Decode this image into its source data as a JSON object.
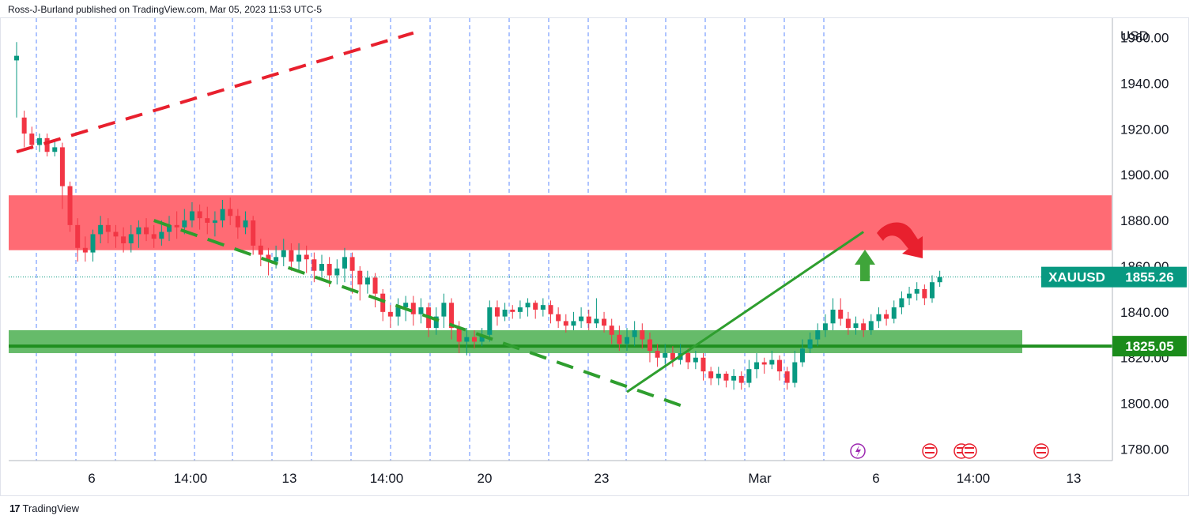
{
  "header": {
    "published": "Ross-J-Burland published on TradingView.com, Mar 05, 2023 11:53 UTC-5"
  },
  "footer": {
    "brand": "TradingView",
    "logo_glyph": "17"
  },
  "colors": {
    "up": "#089981",
    "down": "#f23645",
    "resistance_zone": "#ff6b74",
    "support_zone": "#66bb6a",
    "trend_green": "#2e9e2e",
    "trend_red": "#e8202e",
    "price_label": "#089981",
    "support_label": "#1b8c1b",
    "grid": "#2962ff"
  },
  "chart_data": {
    "type": "candlestick",
    "symbol": "XAUUSD",
    "currency": "USD",
    "last_price": "1855.26",
    "support_level_label": "1825.05",
    "ylim": [
      1775,
      1965
    ],
    "y_ticks": [
      "1960.00",
      "1940.00",
      "1920.00",
      "1900.00",
      "1880.00",
      "1860.00",
      "1840.00",
      "1820.00",
      "1800.00",
      "1780.00"
    ],
    "x_ticks": [
      "6",
      "14:00",
      "13",
      "14:00",
      "20",
      "23",
      "Mar",
      "6",
      "14:00",
      "13"
    ],
    "resistance_zone": [
      1867,
      1891
    ],
    "support_zone": [
      1822,
      1832
    ],
    "support_line": 1825.05,
    "candles": [
      [
        1950,
        1952,
        1958,
        1925
      ],
      [
        1925,
        1918,
        1928,
        1912
      ],
      [
        1918,
        1913,
        1921,
        1911
      ],
      [
        1913,
        1916,
        1918,
        1910
      ],
      [
        1916,
        1910,
        1918,
        1908
      ],
      [
        1910,
        1912,
        1915,
        1908
      ],
      [
        1912,
        1895,
        1914,
        1885
      ],
      [
        1895,
        1878,
        1897,
        1875
      ],
      [
        1878,
        1868,
        1881,
        1862
      ],
      [
        1868,
        1866,
        1873,
        1862
      ],
      [
        1866,
        1874,
        1876,
        1862
      ],
      [
        1874,
        1878,
        1882,
        1870
      ],
      [
        1878,
        1875,
        1881,
        1870
      ],
      [
        1875,
        1873,
        1878,
        1868
      ],
      [
        1873,
        1870,
        1877,
        1866
      ],
      [
        1870,
        1874,
        1878,
        1866
      ],
      [
        1874,
        1877,
        1880,
        1868
      ],
      [
        1877,
        1874,
        1881,
        1871
      ],
      [
        1874,
        1872,
        1878,
        1868
      ],
      [
        1872,
        1875,
        1880,
        1869
      ],
      [
        1875,
        1878,
        1882,
        1871
      ],
      [
        1878,
        1877,
        1884,
        1872
      ],
      [
        1877,
        1880,
        1885,
        1874
      ],
      [
        1880,
        1884,
        1888,
        1877
      ],
      [
        1884,
        1881,
        1887,
        1876
      ],
      [
        1881,
        1879,
        1886,
        1874
      ],
      [
        1879,
        1880,
        1884,
        1873
      ],
      [
        1880,
        1885,
        1889,
        1877
      ],
      [
        1885,
        1882,
        1890,
        1878
      ],
      [
        1882,
        1877,
        1885,
        1872
      ],
      [
        1877,
        1880,
        1884,
        1874
      ],
      [
        1880,
        1869,
        1882,
        1865
      ],
      [
        1869,
        1865,
        1872,
        1860
      ],
      [
        1865,
        1862,
        1868,
        1856
      ],
      [
        1862,
        1864,
        1869,
        1859
      ],
      [
        1864,
        1867,
        1872,
        1860
      ],
      [
        1867,
        1862,
        1870,
        1858
      ],
      [
        1862,
        1865,
        1870,
        1858
      ],
      [
        1865,
        1863,
        1869,
        1857
      ],
      [
        1863,
        1858,
        1866,
        1853
      ],
      [
        1858,
        1861,
        1865,
        1855
      ],
      [
        1861,
        1856,
        1864,
        1851
      ],
      [
        1856,
        1859,
        1863,
        1852
      ],
      [
        1859,
        1864,
        1868,
        1853
      ],
      [
        1864,
        1858,
        1866,
        1848
      ],
      [
        1858,
        1852,
        1860,
        1845
      ],
      [
        1852,
        1855,
        1858,
        1848
      ],
      [
        1855,
        1848,
        1857,
        1842
      ],
      [
        1848,
        1840,
        1850,
        1836
      ],
      [
        1840,
        1838,
        1843,
        1833
      ],
      [
        1838,
        1842,
        1846,
        1834
      ],
      [
        1842,
        1844,
        1847,
        1836
      ],
      [
        1844,
        1839,
        1847,
        1834
      ],
      [
        1839,
        1842,
        1846,
        1835
      ],
      [
        1842,
        1833,
        1844,
        1829
      ],
      [
        1833,
        1838,
        1842,
        1830
      ],
      [
        1838,
        1844,
        1848,
        1833
      ],
      [
        1844,
        1833,
        1846,
        1828
      ],
      [
        1833,
        1827,
        1836,
        1822
      ],
      [
        1827,
        1829,
        1833,
        1821
      ],
      [
        1829,
        1827,
        1832,
        1824
      ],
      [
        1827,
        1830,
        1833,
        1825
      ],
      [
        1830,
        1842,
        1845,
        1827
      ],
      [
        1842,
        1838,
        1845,
        1834
      ],
      [
        1838,
        1841,
        1844,
        1836
      ],
      [
        1841,
        1840,
        1843,
        1837
      ],
      [
        1840,
        1842,
        1845,
        1837
      ],
      [
        1842,
        1844,
        1846,
        1838
      ],
      [
        1844,
        1841,
        1845,
        1837
      ],
      [
        1841,
        1843,
        1846,
        1838
      ],
      [
        1843,
        1839,
        1845,
        1835
      ],
      [
        1839,
        1836,
        1842,
        1833
      ],
      [
        1836,
        1834,
        1839,
        1831
      ],
      [
        1834,
        1836,
        1840,
        1832
      ],
      [
        1836,
        1838,
        1842,
        1833
      ],
      [
        1838,
        1835,
        1841,
        1832
      ],
      [
        1835,
        1837,
        1846,
        1833
      ],
      [
        1837,
        1834,
        1840,
        1831
      ],
      [
        1834,
        1830,
        1837,
        1826
      ],
      [
        1830,
        1826,
        1834,
        1823
      ],
      [
        1826,
        1829,
        1833,
        1823
      ],
      [
        1829,
        1832,
        1836,
        1825
      ],
      [
        1832,
        1828,
        1835,
        1824
      ],
      [
        1828,
        1823,
        1831,
        1818
      ],
      [
        1823,
        1820,
        1826,
        1816
      ],
      [
        1820,
        1822,
        1826,
        1817
      ],
      [
        1822,
        1819,
        1825,
        1816
      ],
      [
        1819,
        1822,
        1826,
        1817
      ],
      [
        1822,
        1818,
        1824,
        1815
      ],
      [
        1818,
        1820,
        1823,
        1815
      ],
      [
        1820,
        1814,
        1822,
        1810
      ],
      [
        1814,
        1811,
        1816,
        1808
      ],
      [
        1811,
        1813,
        1816,
        1808
      ],
      [
        1813,
        1810,
        1814,
        1807
      ],
      [
        1810,
        1812,
        1815,
        1806
      ],
      [
        1812,
        1809,
        1814,
        1806
      ],
      [
        1809,
        1815,
        1819,
        1807
      ],
      [
        1815,
        1818,
        1822,
        1811
      ],
      [
        1818,
        1817,
        1820,
        1813
      ],
      [
        1817,
        1819,
        1823,
        1815
      ],
      [
        1819,
        1814,
        1821,
        1810
      ],
      [
        1814,
        1809,
        1816,
        1806
      ],
      [
        1809,
        1818,
        1823,
        1807
      ],
      [
        1818,
        1824,
        1828,
        1816
      ],
      [
        1824,
        1828,
        1831,
        1822
      ],
      [
        1828,
        1832,
        1835,
        1825
      ],
      [
        1832,
        1835,
        1839,
        1829
      ],
      [
        1835,
        1841,
        1846,
        1832
      ],
      [
        1841,
        1837,
        1846,
        1834
      ],
      [
        1837,
        1833,
        1840,
        1830
      ],
      [
        1833,
        1835,
        1838,
        1830
      ],
      [
        1835,
        1832,
        1837,
        1829
      ],
      [
        1832,
        1836,
        1839,
        1830
      ],
      [
        1836,
        1839,
        1842,
        1833
      ],
      [
        1839,
        1837,
        1841,
        1834
      ],
      [
        1837,
        1842,
        1845,
        1835
      ],
      [
        1842,
        1846,
        1849,
        1839
      ],
      [
        1846,
        1848,
        1851,
        1843
      ],
      [
        1848,
        1850,
        1853,
        1845
      ],
      [
        1850,
        1846,
        1852,
        1843
      ],
      [
        1846,
        1853,
        1856,
        1844
      ],
      [
        1853,
        1855.26,
        1858,
        1851
      ]
    ],
    "trendlines": [
      {
        "name": "red-dashed-upper",
        "style": "dashed",
        "color": "red",
        "from": {
          "candle": 0,
          "price": 1910
        },
        "to": {
          "candle": 52,
          "price": 1962
        }
      },
      {
        "name": "green-dashed-descending",
        "style": "dashed",
        "color": "green",
        "from": {
          "candle": 18,
          "price": 1880
        },
        "to": {
          "candle": 88,
          "price": 1798
        }
      },
      {
        "name": "green-rising-support",
        "style": "solid",
        "color": "green",
        "from": {
          "candle": 80,
          "price": 1805
        },
        "to": {
          "candle": 111,
          "price": 1875
        }
      }
    ]
  }
}
